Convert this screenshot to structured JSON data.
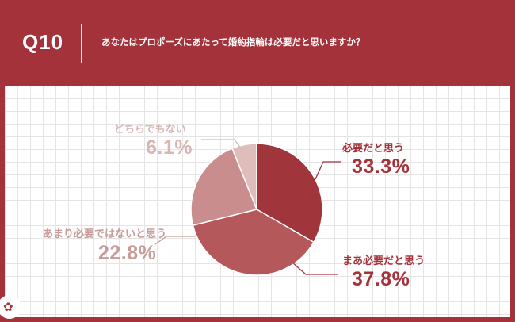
{
  "header": {
    "number": "Q10",
    "question": "あなたはプロポーズにあたって婚約指輪は必要だと思いますか？"
  },
  "chart_data": {
    "type": "pie",
    "title": "",
    "slices": [
      {
        "label": "必要だと思う",
        "value": 33.3,
        "display": "33.3%",
        "color": "#a0353b"
      },
      {
        "label": "まあ必要だと思う",
        "value": 37.8,
        "display": "37.8%",
        "color": "#b5585c"
      },
      {
        "label": "あまり必要ではないと思う",
        "value": 22.8,
        "display": "22.8%",
        "color": "#c98d8d"
      },
      {
        "label": "どちらでもない",
        "value": 6.1,
        "display": "6.1%",
        "color": "#dfbdbb"
      }
    ]
  },
  "colors": {
    "brand": "#a3323a",
    "label_dark": "#a3323a",
    "label_light": "#c99a9a",
    "label_faint": "#d8b6b4"
  },
  "logo": {
    "icon": "lotus-logo-icon"
  }
}
